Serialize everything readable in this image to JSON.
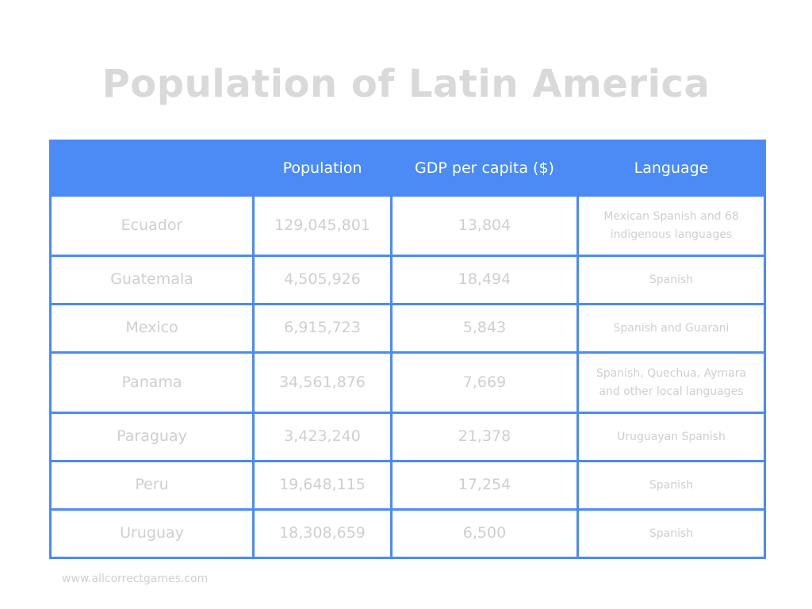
{
  "title": "Population of Latin America",
  "colors": {
    "header_bg": "#4a8bf5",
    "header_text": "#ffffff",
    "cell_text": "#cfcfcf",
    "title_text": "#d9d9d9"
  },
  "table": {
    "headers": [
      "",
      "Population",
      "GDP per capita ($)",
      "Language"
    ],
    "rows": [
      {
        "country": "Ecuador",
        "population": "129,045,801",
        "gdp": "13,804",
        "language": "Mexican Spanish and 68 indigenous languages"
      },
      {
        "country": "Guatemala",
        "population": "4,505,926",
        "gdp": "18,494",
        "language": "Spanish"
      },
      {
        "country": "Mexico",
        "population": "6,915,723",
        "gdp": "5,843",
        "language": "Spanish and Guarani"
      },
      {
        "country": "Panama",
        "population": "34,561,876",
        "gdp": "7,669",
        "language": "Spanish, Quechua, Aymara and other local languages"
      },
      {
        "country": "Paraguay",
        "population": "3,423,240",
        "gdp": "21,378",
        "language": "Uruguayan Spanish"
      },
      {
        "country": "Peru",
        "population": "19,648,115",
        "gdp": "17,254",
        "language": "Spanish"
      },
      {
        "country": "Uruguay",
        "population": "18,308,659",
        "gdp": "6,500",
        "language": "Spanish"
      }
    ]
  },
  "footer": "www.allcorrectgames.com"
}
